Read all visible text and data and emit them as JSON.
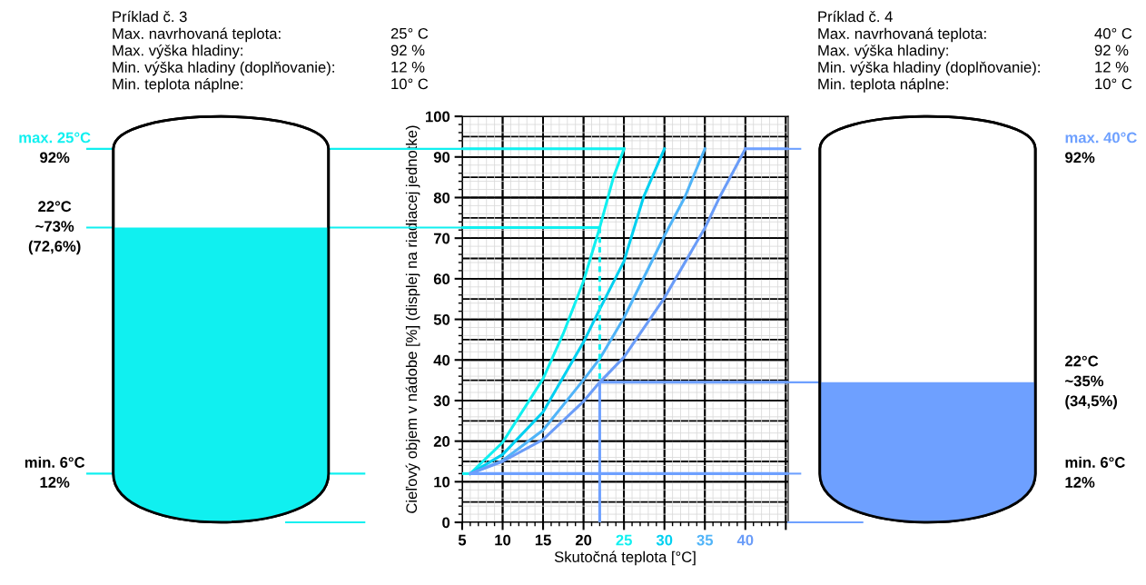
{
  "chart_data": {
    "type": "line",
    "xlabel": "Skutočná teplota [°C]",
    "ylabel": "Cieľový objem v nádobe [%] (displej na riadiacej jednotke)",
    "xlim": [
      5,
      45.3
    ],
    "ylim": [
      0,
      100
    ],
    "xticks": [
      5,
      10,
      15,
      20,
      25,
      30,
      35,
      40,
      {
        "value": 45,
        "label": null
      }
    ],
    "yticks": [
      0,
      10,
      20,
      30,
      40,
      50,
      60,
      70,
      80,
      90,
      100
    ],
    "grid": true,
    "marker": "none",
    "series": [
      {
        "color": "#10f0f0",
        "x": [
          6,
          10,
          15,
          17.5,
          20,
          22,
          23.7,
          25
        ],
        "values": [
          12,
          19.7,
          35.4,
          46.5,
          59.4,
          72.6,
          85,
          92
        ]
      },
      {
        "color": "#00d0f0",
        "x": [
          6,
          10,
          15,
          20,
          22,
          25,
          27.4,
          30
        ],
        "values": [
          12,
          16.7,
          27.2,
          44.4,
          52.5,
          64.3,
          80,
          92
        ]
      },
      {
        "color": "#50b4f8",
        "x": [
          6,
          10,
          15,
          20,
          22,
          25,
          30,
          32.5,
          35
        ],
        "values": [
          12,
          15.2,
          22.7,
          35.1,
          40.3,
          50.4,
          70.6,
          80,
          92
        ]
      },
      {
        "color": "#6a9cf8",
        "x": [
          6,
          10,
          15,
          20,
          22,
          25,
          30,
          35,
          36.9,
          40
        ],
        "values": [
          12,
          15,
          20.4,
          29.8,
          34.5,
          40.7,
          55.3,
          72.5,
          80.4,
          92
        ]
      },
      {
        "color": "#10f0f0",
        "x": [
          5,
          25
        ],
        "values": [
          92,
          92
        ]
      },
      {
        "color": "#10f0f0",
        "x": [
          5,
          22
        ],
        "values": [
          72.6,
          72.6
        ]
      },
      {
        "color": "#10f0f0",
        "x": [
          22,
          22
        ],
        "values": [
          72.6,
          34.5
        ],
        "line_style": "dashed"
      },
      {
        "color": "#6ea0ff",
        "x": [
          22,
          45.3
        ],
        "values": [
          34.5,
          34.5
        ]
      },
      {
        "color": "#6ea0ff",
        "x": [
          22,
          22
        ],
        "values": [
          34.5,
          0
        ]
      },
      {
        "color": "#6ea0ff",
        "x": [
          40,
          45.3
        ],
        "values": [
          92,
          92
        ]
      },
      {
        "color": "#10f0f0",
        "x": [
          5,
          6
        ],
        "values": [
          12,
          12
        ]
      },
      {
        "color": "#6ea0ff",
        "x": [
          6,
          45.3
        ],
        "values": [
          12,
          12
        ]
      }
    ],
    "annotations": [
      "Príklad č. 3\nMax. navrhovaná teplota:\t25° C\nMax. výška hladiny:\t92 %\nMin. výška hladiny (doplňovanie):\t12 %\nMin. teplota náplne:\t10° C",
      "Príklad č. 4\nMax. navrhovaná teplota:\t40° C\nMax. výška hladiny:\t92 %\nMin. výška hladiny (doplňovanie):\t12 %\nMin. teplota náplne:\t10° C",
      "max. 25°C\n92%",
      "22°C\n~73%\n(72,6%)",
      "min. 6°C\n12%",
      "max. 40°C\n92%",
      "22°C\n~35%\n(34,5%)",
      "min. 6°C\n12%"
    ]
  }
}
